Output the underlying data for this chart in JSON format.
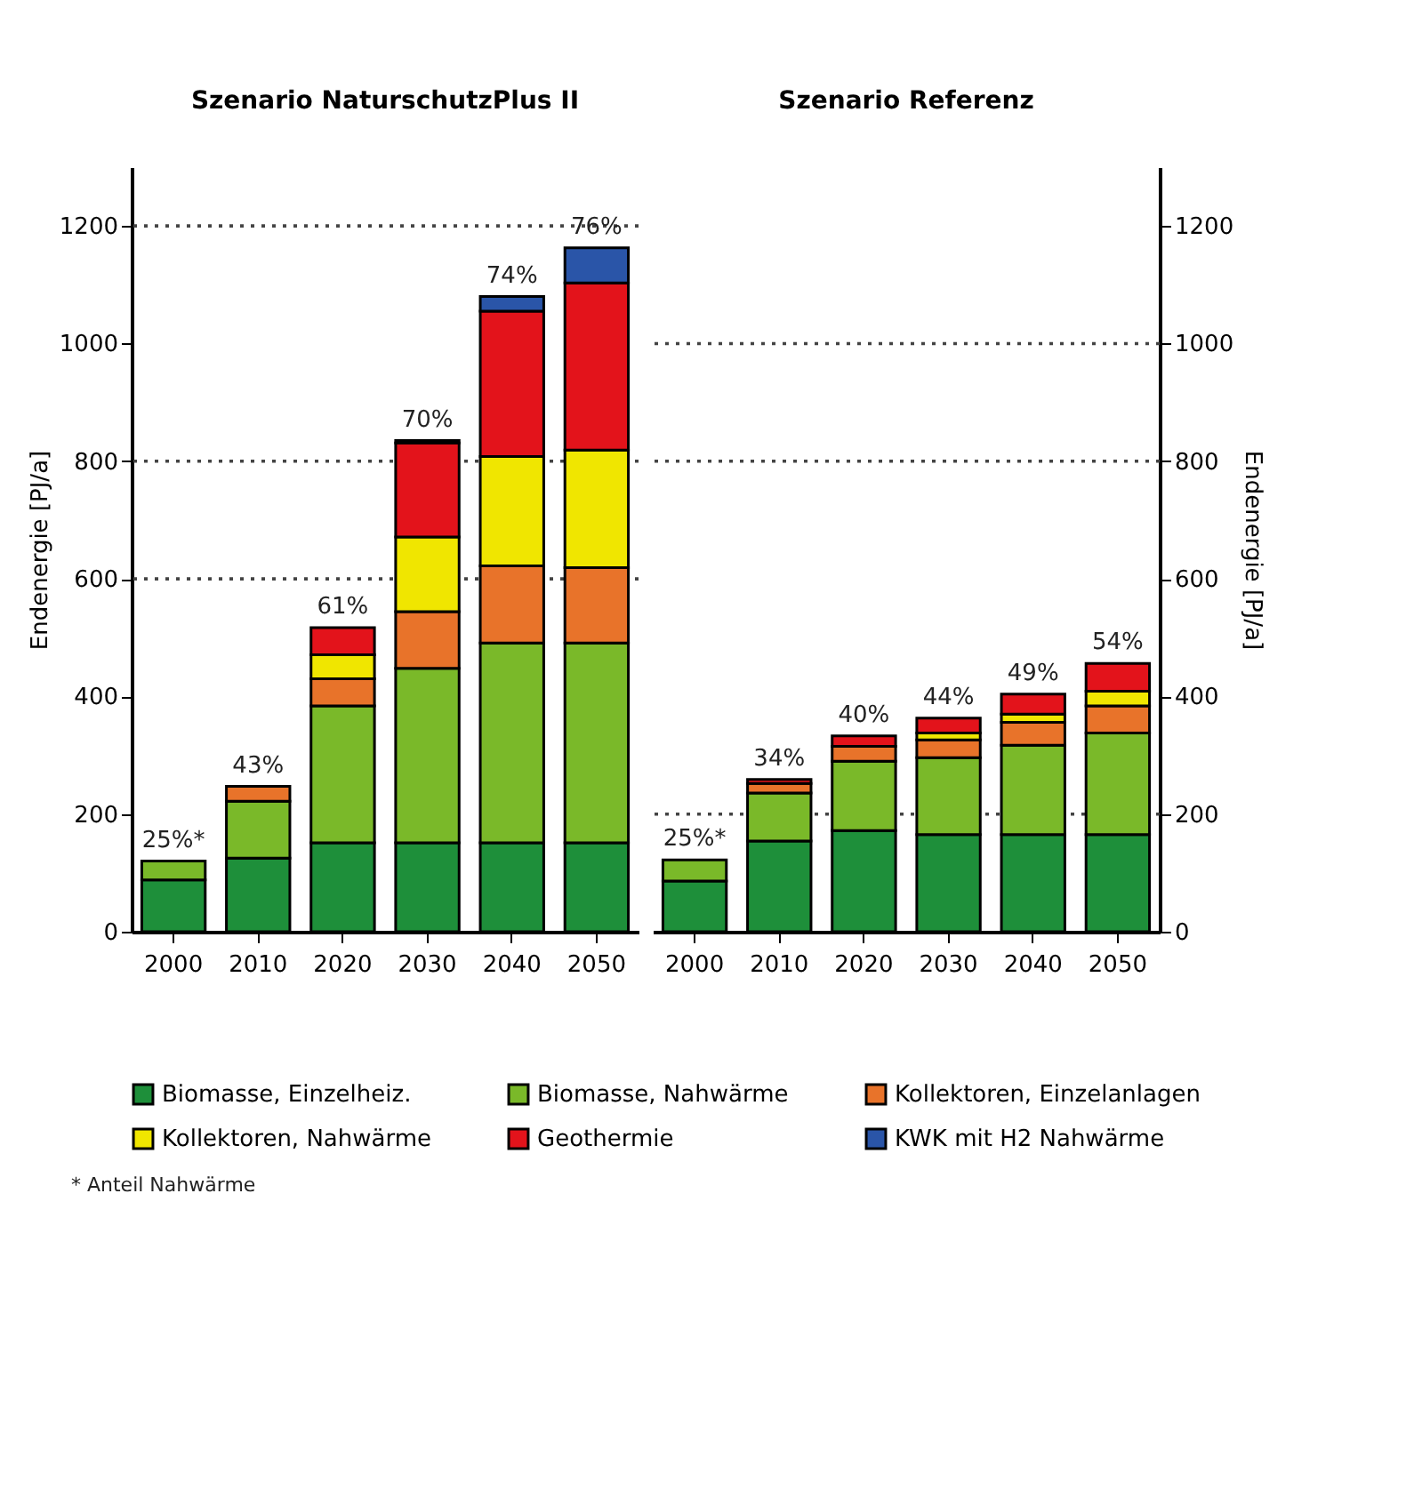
{
  "chart_data": [
    {
      "type": "bar",
      "title": "Szenario NaturschutzPlus II",
      "ylabel": "Endenergie [PJ/a]",
      "stacked": true,
      "legend": "bottom",
      "categories": [
        "2000",
        "2010",
        "2020",
        "2030",
        "2040",
        "2050"
      ],
      "ylim": [
        0,
        1300
      ],
      "yticks": [
        0,
        200,
        400,
        600,
        800,
        1000,
        1200
      ],
      "series": [
        {
          "name": "Biomasse, Einzelheiz.",
          "color": "#1e8f3a",
          "values": [
            88,
            125,
            151,
            151,
            151,
            151
          ]
        },
        {
          "name": "Biomasse, Nahwärme",
          "color": "#7ab929",
          "values": [
            32,
            97,
            233,
            297,
            340,
            340
          ]
        },
        {
          "name": "Kollektoren, Einzelanlagen",
          "color": "#e8732a",
          "values": [
            0,
            25,
            46,
            96,
            131,
            128
          ]
        },
        {
          "name": "Kollektoren, Nahwärme",
          "color": "#f0e600",
          "values": [
            0,
            0,
            41,
            127,
            186,
            200
          ]
        },
        {
          "name": "Geothermie",
          "color": "#e3131b",
          "values": [
            0,
            0,
            46,
            160,
            247,
            284
          ]
        },
        {
          "name": "KWK mit H2 Nahwärme",
          "color": "#2a55a8",
          "values": [
            0,
            0,
            0,
            4,
            25,
            60
          ]
        }
      ],
      "ref_lines": [
        {
          "axis": "y",
          "value": 600,
          "color": "#444444",
          "line_style": "dotted"
        },
        {
          "axis": "y",
          "value": 800,
          "color": "#444444",
          "line_style": "dotted"
        },
        {
          "axis": "y",
          "value": 1200,
          "color": "#444444",
          "line_style": "dotted"
        }
      ],
      "annotations": [
        {
          "text": "25%*",
          "x": "2000",
          "y": 120
        },
        {
          "text": "43%",
          "x": "2010",
          "y": 247
        },
        {
          "text": "61%",
          "x": "2020",
          "y": 517
        },
        {
          "text": "70%",
          "x": "2030",
          "y": 835
        },
        {
          "text": "74%",
          "x": "2040",
          "y": 1080
        },
        {
          "text": "76%",
          "x": "2050",
          "y": 1163
        },
        "* Anteil Nahwärme"
      ]
    },
    {
      "type": "bar",
      "title": "Szenario Referenz",
      "ylabel": "Endenergie [PJ/a]",
      "stacked": true,
      "legend": "bottom",
      "categories": [
        "2000",
        "2010",
        "2020",
        "2030",
        "2040",
        "2050"
      ],
      "ylim": [
        0,
        1300
      ],
      "yticks": [
        0,
        200,
        400,
        600,
        800,
        1000,
        1200
      ],
      "series": [
        {
          "name": "Biomasse, Einzelheiz.",
          "color": "#1e8f3a",
          "values": [
            86,
            154,
            172,
            165,
            165,
            165
          ]
        },
        {
          "name": "Biomasse, Nahwärme",
          "color": "#7ab929",
          "values": [
            36,
            82,
            118,
            131,
            152,
            173
          ]
        },
        {
          "name": "Kollektoren, Einzelanlagen",
          "color": "#e8732a",
          "values": [
            0,
            16,
            25,
            30,
            39,
            46
          ]
        },
        {
          "name": "Kollektoren, Nahwärme",
          "color": "#f0e600",
          "values": [
            0,
            0,
            0,
            12,
            14,
            25
          ]
        },
        {
          "name": "Geothermie",
          "color": "#e3131b",
          "values": [
            0,
            7,
            18,
            25,
            34,
            47
          ]
        },
        {
          "name": "KWK mit H2 Nahwärme",
          "color": "#2a55a8",
          "values": [
            0,
            0,
            0,
            0,
            0,
            0
          ]
        }
      ],
      "ref_lines": [
        {
          "axis": "y",
          "value": 200,
          "color": "#444444",
          "line_style": "dotted"
        },
        {
          "axis": "y",
          "value": 800,
          "color": "#444444",
          "line_style": "dotted"
        },
        {
          "axis": "y",
          "value": 1000,
          "color": "#444444",
          "line_style": "dotted"
        }
      ],
      "annotations": [
        {
          "text": "25%*",
          "x": "2000",
          "y": 122
        },
        {
          "text": "34%",
          "x": "2010",
          "y": 259
        },
        {
          "text": "40%",
          "x": "2020",
          "y": 333
        },
        {
          "text": "44%",
          "x": "2030",
          "y": 363
        },
        {
          "text": "49%",
          "x": "2040",
          "y": 404
        },
        {
          "text": "54%",
          "x": "2050",
          "y": 456
        }
      ]
    }
  ]
}
